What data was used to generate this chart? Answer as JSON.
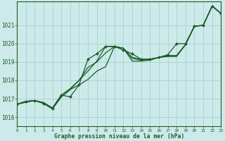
{
  "title": "Graphe pression niveau de la mer (hPa)",
  "background_color": "#cdeaea",
  "grid_color": "#aacfcf",
  "line_color": "#1a5c28",
  "marker_color": "#1a5c28",
  "xlim": [
    0,
    23
  ],
  "ylim": [
    1015.5,
    1022.3
  ],
  "yticks": [
    1016,
    1017,
    1018,
    1019,
    1020,
    1021
  ],
  "xtick_labels": [
    "0",
    "1",
    "2",
    "3",
    "4",
    "5",
    "6",
    "7",
    "8",
    "9",
    "10",
    "11",
    "12",
    "13",
    "14",
    "15",
    "16",
    "17",
    "18",
    "19",
    "20",
    "21",
    "22",
    "23"
  ],
  "xtick_positions": [
    0,
    1,
    2,
    3,
    4,
    5,
    6,
    7,
    8,
    9,
    10,
    11,
    12,
    13,
    14,
    15,
    16,
    17,
    18,
    19,
    20,
    21,
    22,
    23
  ],
  "series": [
    {
      "x": [
        0,
        1,
        2,
        3,
        4,
        5,
        6,
        7,
        8,
        9,
        10,
        11,
        12,
        13,
        14,
        15,
        16,
        17,
        18,
        19,
        20,
        21,
        22,
        23
      ],
      "y": [
        1016.7,
        1016.85,
        1016.9,
        1016.75,
        1016.45,
        1017.1,
        1017.5,
        1017.75,
        1018.05,
        1018.5,
        1018.75,
        1019.85,
        1019.75,
        1019.05,
        1019.05,
        1019.1,
        1019.25,
        1019.3,
        1019.3,
        1019.95,
        1020.95,
        1021.0,
        1022.05,
        1021.65
      ],
      "has_markers": false
    },
    {
      "x": [
        0,
        1,
        2,
        3,
        4,
        5,
        6,
        7,
        8,
        9,
        10,
        11,
        12,
        13,
        14,
        15,
        16,
        17,
        18,
        19,
        20,
        21,
        22,
        23
      ],
      "y": [
        1016.7,
        1016.85,
        1016.9,
        1016.75,
        1016.45,
        1017.1,
        1017.5,
        1018.0,
        1018.7,
        1019.0,
        1019.5,
        1019.85,
        1019.75,
        1019.2,
        1019.1,
        1019.15,
        1019.25,
        1019.35,
        1019.35,
        1019.95,
        1020.95,
        1021.0,
        1022.05,
        1021.65
      ],
      "has_markers": false
    },
    {
      "x": [
        0,
        1,
        2,
        3,
        4,
        5,
        6,
        7,
        8,
        9,
        10,
        11,
        12,
        13,
        14,
        15,
        16,
        17,
        18,
        19,
        20,
        21,
        22,
        23
      ],
      "y": [
        1016.7,
        1016.85,
        1016.9,
        1016.75,
        1016.45,
        1017.2,
        1017.1,
        1017.75,
        1019.15,
        1019.45,
        1019.85,
        1019.85,
        1019.65,
        1019.45,
        1019.15,
        1019.15,
        1019.25,
        1019.4,
        1020.0,
        1020.0,
        1020.95,
        1021.0,
        1022.05,
        1021.65
      ],
      "has_markers": true
    },
    {
      "x": [
        0,
        2,
        3,
        4,
        5,
        6,
        7,
        8,
        9,
        10,
        11,
        12,
        13,
        14,
        15,
        16,
        17,
        18,
        19,
        20,
        21,
        22,
        23
      ],
      "y": [
        1016.7,
        1016.9,
        1016.8,
        1016.5,
        1017.2,
        1017.55,
        1018.0,
        1018.5,
        1019.05,
        1019.85,
        1019.85,
        1019.75,
        1019.25,
        1019.15,
        1019.15,
        1019.25,
        1019.35,
        1019.35,
        1019.95,
        1020.95,
        1021.0,
        1022.05,
        1021.65
      ],
      "has_markers": false
    }
  ]
}
